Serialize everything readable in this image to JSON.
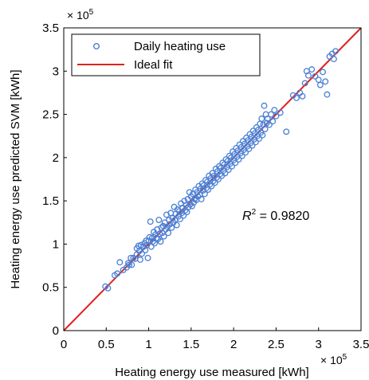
{
  "chart_data": {
    "type": "scatter",
    "xlabel": "Heating energy use measured [kWh]",
    "ylabel": "Heating energy use predicted SVM [kWh]",
    "xlim": [
      0,
      3.5
    ],
    "ylim": [
      0,
      3.5
    ],
    "x_ticks": [
      "0",
      "0.5",
      "1",
      "1.5",
      "2",
      "2.5",
      "3",
      "3.5"
    ],
    "y_ticks": [
      "0",
      "0.5",
      "1",
      "1.5",
      "2",
      "2.5",
      "3",
      "3.5"
    ],
    "x_multiplier": {
      "base": "× 10",
      "exponent": "5"
    },
    "y_multiplier": {
      "base": "× 10",
      "exponent": "5"
    },
    "legend_position": "top-left",
    "colors": {
      "scatter": "#4a7fd4",
      "fit": "#e0201c",
      "axis": "#000000"
    },
    "annotation": {
      "symbol": "R",
      "superscript": "2",
      "text": " = 0.9820"
    },
    "series": [
      {
        "name": "Daily heating use",
        "kind": "scatter",
        "marker": "open-circle",
        "points": [
          [
            0.49,
            0.51
          ],
          [
            0.52,
            0.49
          ],
          [
            0.6,
            0.64
          ],
          [
            0.63,
            0.66
          ],
          [
            0.66,
            0.79
          ],
          [
            0.7,
            0.7
          ],
          [
            0.74,
            0.73
          ],
          [
            0.76,
            0.78
          ],
          [
            0.77,
            0.76
          ],
          [
            0.79,
            0.84
          ],
          [
            0.8,
            0.76
          ],
          [
            0.82,
            0.84
          ],
          [
            0.84,
            0.83
          ],
          [
            0.86,
            0.88
          ],
          [
            0.86,
            0.95
          ],
          [
            0.88,
            0.98
          ],
          [
            0.89,
            0.92
          ],
          [
            0.9,
            0.82
          ],
          [
            0.91,
            0.99
          ],
          [
            0.92,
            0.89
          ],
          [
            0.94,
            0.97
          ],
          [
            0.95,
            1.01
          ],
          [
            0.96,
            0.93
          ],
          [
            0.97,
            1.04
          ],
          [
            0.98,
            0.99
          ],
          [
            0.99,
            0.84
          ],
          [
            1.0,
            1.04
          ],
          [
            1.01,
            1.08
          ],
          [
            1.02,
            1.26
          ],
          [
            1.03,
            0.97
          ],
          [
            1.04,
            1.07
          ],
          [
            1.05,
            1.03
          ],
          [
            1.06,
            1.14
          ],
          [
            1.07,
            1.01
          ],
          [
            1.08,
            1.11
          ],
          [
            1.09,
            1.07
          ],
          [
            1.1,
            1.17
          ],
          [
            1.11,
            1.06
          ],
          [
            1.12,
            1.28
          ],
          [
            1.13,
            1.12
          ],
          [
            1.14,
            1.03
          ],
          [
            1.15,
            1.19
          ],
          [
            1.16,
            1.13
          ],
          [
            1.17,
            1.21
          ],
          [
            1.18,
            1.09
          ],
          [
            1.19,
            1.25
          ],
          [
            1.2,
            1.17
          ],
          [
            1.21,
            1.34
          ],
          [
            1.22,
            1.2
          ],
          [
            1.23,
            1.13
          ],
          [
            1.24,
            1.28
          ],
          [
            1.25,
            1.23
          ],
          [
            1.26,
            1.36
          ],
          [
            1.27,
            1.19
          ],
          [
            1.28,
            1.3
          ],
          [
            1.29,
            1.25
          ],
          [
            1.3,
            1.43
          ],
          [
            1.31,
            1.28
          ],
          [
            1.32,
            1.35
          ],
          [
            1.33,
            1.22
          ],
          [
            1.34,
            1.4
          ],
          [
            1.35,
            1.32
          ],
          [
            1.36,
            1.38
          ],
          [
            1.37,
            1.29
          ],
          [
            1.38,
            1.47
          ],
          [
            1.39,
            1.36
          ],
          [
            1.4,
            1.42
          ],
          [
            1.41,
            1.33
          ],
          [
            1.42,
            1.5
          ],
          [
            1.43,
            1.39
          ],
          [
            1.44,
            1.45
          ],
          [
            1.45,
            1.37
          ],
          [
            1.46,
            1.52
          ],
          [
            1.47,
            1.43
          ],
          [
            1.48,
            1.6
          ],
          [
            1.49,
            1.46
          ],
          [
            1.5,
            1.55
          ],
          [
            1.51,
            1.44
          ],
          [
            1.52,
            1.58
          ],
          [
            1.53,
            1.48
          ],
          [
            1.54,
            1.52
          ],
          [
            1.55,
            1.63
          ],
          [
            1.56,
            1.51
          ],
          [
            1.57,
            1.6
          ],
          [
            1.58,
            1.55
          ],
          [
            1.59,
            1.67
          ],
          [
            1.6,
            1.57
          ],
          [
            1.61,
            1.64
          ],
          [
            1.62,
            1.52
          ],
          [
            1.63,
            1.7
          ],
          [
            1.64,
            1.62
          ],
          [
            1.65,
            1.68
          ],
          [
            1.66,
            1.58
          ],
          [
            1.67,
            1.74
          ],
          [
            1.68,
            1.65
          ],
          [
            1.69,
            1.72
          ],
          [
            1.7,
            1.63
          ],
          [
            1.71,
            1.79
          ],
          [
            1.72,
            1.69
          ],
          [
            1.73,
            1.76
          ],
          [
            1.74,
            1.67
          ],
          [
            1.75,
            1.82
          ],
          [
            1.76,
            1.73
          ],
          [
            1.77,
            1.79
          ],
          [
            1.78,
            1.71
          ],
          [
            1.79,
            1.87
          ],
          [
            1.8,
            1.77
          ],
          [
            1.81,
            1.84
          ],
          [
            1.82,
            1.75
          ],
          [
            1.83,
            1.9
          ],
          [
            1.84,
            1.81
          ],
          [
            1.85,
            1.88
          ],
          [
            1.86,
            1.79
          ],
          [
            1.87,
            1.94
          ],
          [
            1.88,
            1.85
          ],
          [
            1.89,
            1.92
          ],
          [
            1.9,
            1.82
          ],
          [
            1.91,
            1.98
          ],
          [
            1.92,
            1.89
          ],
          [
            1.93,
            1.96
          ],
          [
            1.94,
            1.86
          ],
          [
            1.95,
            2.02
          ],
          [
            1.96,
            1.93
          ],
          [
            1.97,
            2.0
          ],
          [
            1.98,
            1.9
          ],
          [
            1.99,
            2.07
          ],
          [
            2.0,
            1.97
          ],
          [
            2.01,
            2.04
          ],
          [
            2.02,
            1.94
          ],
          [
            2.03,
            2.11
          ],
          [
            2.04,
            2.01
          ],
          [
            2.05,
            2.08
          ],
          [
            2.06,
            1.98
          ],
          [
            2.07,
            2.15
          ],
          [
            2.08,
            2.05
          ],
          [
            2.09,
            2.12
          ],
          [
            2.1,
            2.02
          ],
          [
            2.11,
            2.19
          ],
          [
            2.12,
            2.09
          ],
          [
            2.13,
            2.16
          ],
          [
            2.14,
            2.06
          ],
          [
            2.15,
            2.23
          ],
          [
            2.16,
            2.13
          ],
          [
            2.17,
            2.2
          ],
          [
            2.18,
            2.1
          ],
          [
            2.19,
            2.27
          ],
          [
            2.2,
            2.17
          ],
          [
            2.21,
            2.24
          ],
          [
            2.22,
            2.14
          ],
          [
            2.23,
            2.31
          ],
          [
            2.24,
            2.21
          ],
          [
            2.25,
            2.28
          ],
          [
            2.26,
            2.18
          ],
          [
            2.27,
            2.35
          ],
          [
            2.28,
            2.25
          ],
          [
            2.29,
            2.32
          ],
          [
            2.3,
            2.22
          ],
          [
            2.31,
            2.39
          ],
          [
            2.32,
            2.29
          ],
          [
            2.33,
            2.45
          ],
          [
            2.34,
            2.26
          ],
          [
            2.35,
            2.38
          ],
          [
            2.36,
            2.6
          ],
          [
            2.37,
            2.33
          ],
          [
            2.38,
            2.5
          ],
          [
            2.39,
            2.4
          ],
          [
            2.4,
            2.45
          ],
          [
            2.42,
            2.38
          ],
          [
            2.44,
            2.5
          ],
          [
            2.46,
            2.42
          ],
          [
            2.48,
            2.55
          ],
          [
            2.5,
            2.48
          ],
          [
            2.55,
            2.52
          ],
          [
            2.62,
            2.3
          ],
          [
            2.7,
            2.72
          ],
          [
            2.74,
            2.69
          ],
          [
            2.78,
            2.75
          ],
          [
            2.81,
            2.71
          ],
          [
            2.84,
            2.86
          ],
          [
            2.86,
            3.0
          ],
          [
            2.88,
            2.95
          ],
          [
            2.92,
            3.02
          ],
          [
            2.96,
            2.94
          ],
          [
            3.0,
            2.9
          ],
          [
            3.02,
            2.84
          ],
          [
            3.05,
            2.99
          ],
          [
            3.08,
            2.88
          ],
          [
            3.1,
            2.73
          ],
          [
            3.13,
            3.17
          ],
          [
            3.16,
            3.2
          ],
          [
            3.18,
            3.14
          ],
          [
            3.2,
            3.23
          ]
        ]
      },
      {
        "name": "Ideal fit",
        "kind": "line",
        "points": [
          [
            0,
            0
          ],
          [
            3.5,
            3.5
          ]
        ]
      }
    ]
  }
}
